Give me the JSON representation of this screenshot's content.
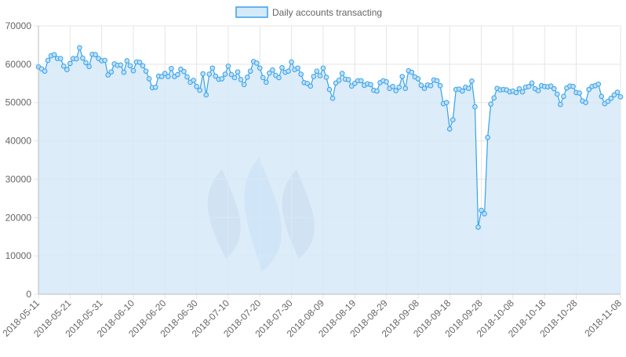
{
  "colors": {
    "line": "#36a2eb",
    "fill": "#d6e9f8",
    "grid": "#e5e5e5",
    "axis_text": "#666666",
    "watermark_dark": "#9aa9c8",
    "watermark_light": "#9cc2ef"
  },
  "watermark": {
    "icon": "steem-logo-icon"
  },
  "chart_data": {
    "type": "area",
    "title": "",
    "xlabel": "",
    "ylabel": "",
    "legend": {
      "position": "top-center",
      "label": "Daily accounts transacting"
    },
    "grid": true,
    "ylim": [
      0,
      70000
    ],
    "y_ticks": [
      "0",
      "10000",
      "20000",
      "30000",
      "40000",
      "50000",
      "60000",
      "70000"
    ],
    "x_tick_labels": [
      "2018-05-11",
      "2018-05-21",
      "2018-05-31",
      "2018-06-10",
      "2018-06-20",
      "2018-06-30",
      "2018-07-10",
      "2018-07-20",
      "2018-07-30",
      "2018-08-09",
      "2018-08-19",
      "2018-08-29",
      "2018-09-08",
      "2018-09-18",
      "2018-09-28",
      "2018-10-08",
      "2018-10-18",
      "2018-10-28",
      "2018-11-08"
    ],
    "series": [
      {
        "name": "Daily accounts transacting",
        "x_start": "2018-05-11",
        "x_end": "2018-11-08",
        "values": [
          59300,
          58800,
          58200,
          61000,
          62200,
          62500,
          61500,
          61500,
          59500,
          58600,
          60200,
          61500,
          61400,
          64300,
          61600,
          60400,
          59400,
          62600,
          62500,
          61500,
          60900,
          61000,
          57200,
          58000,
          60100,
          59700,
          59800,
          57900,
          60900,
          59600,
          58300,
          60600,
          60500,
          59600,
          58200,
          56200,
          53900,
          54000,
          56900,
          56800,
          57600,
          56800,
          58900,
          56800,
          57300,
          58700,
          58100,
          56700,
          55300,
          55800,
          54200,
          53200,
          57500,
          52000,
          57400,
          59000,
          56900,
          56100,
          56200,
          57400,
          59500,
          57300,
          56500,
          58000,
          56000,
          54700,
          56600,
          58200,
          60700,
          60300,
          59000,
          56500,
          55300,
          57700,
          58500,
          57100,
          56500,
          59100,
          57900,
          58200,
          60600,
          58600,
          59000,
          57400,
          55200,
          55000,
          54300,
          56800,
          58200,
          57000,
          59000,
          56600,
          53400,
          51100,
          55100,
          55800,
          57600,
          56100,
          56000,
          54300,
          55000,
          55700,
          55700,
          54500,
          54900,
          54700,
          53200,
          53000,
          55200,
          55700,
          55400,
          53700,
          54200,
          53100,
          54000,
          56800,
          53700,
          58300,
          57900,
          56700,
          56200,
          54500,
          53700,
          54600,
          54400,
          55900,
          55700,
          54400,
          49700,
          50000,
          43100,
          45500,
          53400,
          53500,
          53000,
          54000,
          53700,
          55600,
          48900,
          17500,
          21900,
          21000,
          40900,
          49600,
          51200,
          53700,
          53300,
          53400,
          53300,
          52800,
          53000,
          52600,
          53600,
          52800,
          54000,
          54200,
          55100,
          53600,
          53100,
          54400,
          54200,
          54100,
          54300,
          53600,
          52200,
          49500,
          51600,
          53800,
          54300,
          54200,
          52600,
          52500,
          50400,
          50000,
          53400,
          54200,
          54400,
          54800,
          51600,
          49700,
          50300,
          51100,
          52000,
          52700,
          51500
        ]
      }
    ]
  }
}
